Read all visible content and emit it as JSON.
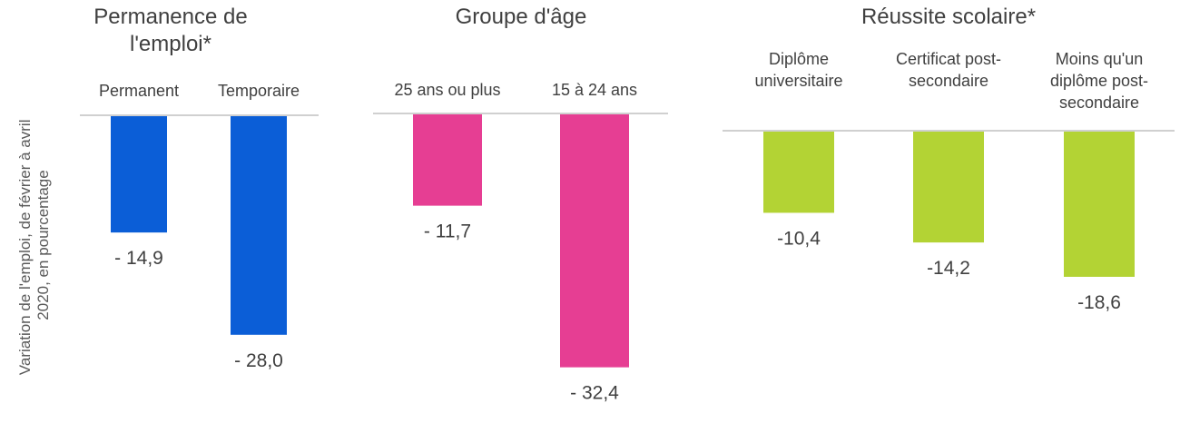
{
  "chart_data": {
    "type": "bar",
    "ylabel": "Variation de l'emploi, de février à avril 2020, en pourcentage",
    "panels": [
      {
        "title": "Permanence de l'emploi*",
        "color": "#0b5ed7",
        "categories": [
          "Permanent",
          "Temporaire"
        ],
        "values": [
          -14.9,
          -28.0
        ],
        "value_labels": [
          "- 14,9",
          "- 28,0"
        ]
      },
      {
        "title": "Groupe d'âge",
        "color": "#e63e93",
        "categories": [
          "25 ans ou plus",
          "15 à 24 ans"
        ],
        "values": [
          -11.7,
          -32.4
        ],
        "value_labels": [
          "- 11,7",
          "- 32,4"
        ]
      },
      {
        "title": "Réussite scolaire*",
        "color": "#b3d334",
        "categories": [
          "Diplôme universitaire",
          "Certificat post-secondaire",
          "Moins qu'un diplôme post-secondaire"
        ],
        "values": [
          -10.4,
          -14.2,
          -18.6
        ],
        "value_labels": [
          "-10,4",
          "-14,2",
          "-18,6"
        ]
      }
    ]
  }
}
